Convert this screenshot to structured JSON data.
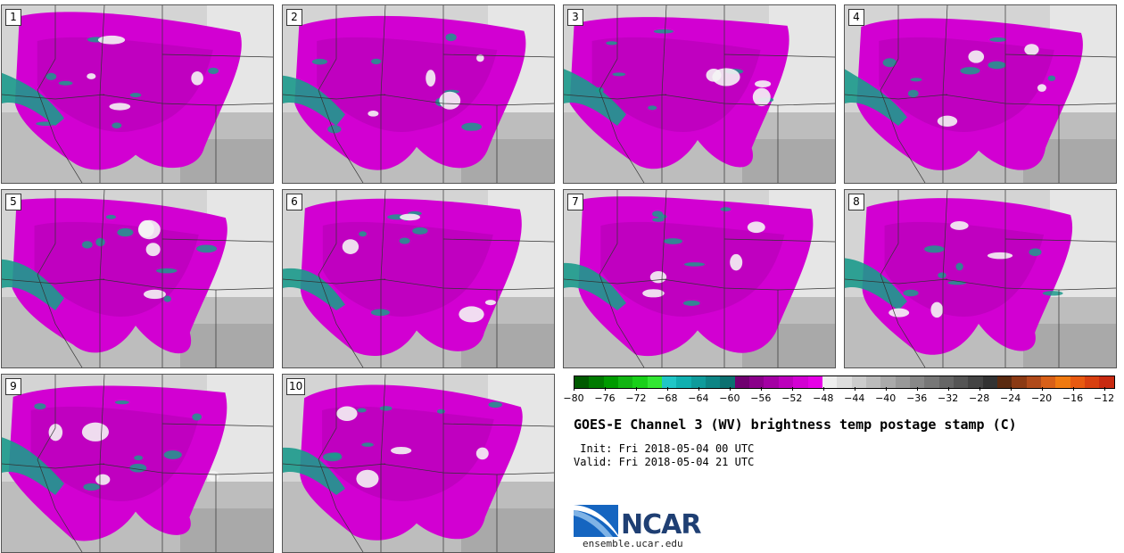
{
  "stamps": [
    {
      "label": "1"
    },
    {
      "label": "2"
    },
    {
      "label": "3"
    },
    {
      "label": "4"
    },
    {
      "label": "5"
    },
    {
      "label": "6"
    },
    {
      "label": "7"
    },
    {
      "label": "8"
    },
    {
      "label": "9"
    },
    {
      "label": "10"
    }
  ],
  "colorbar": {
    "colors": [
      "#005a00",
      "#007a00",
      "#009b00",
      "#12b512",
      "#19d019",
      "#33e633",
      "#20c6c6",
      "#10b0b0",
      "#0f9b9b",
      "#0d8585",
      "#0b7070",
      "#700070",
      "#8a008a",
      "#a300a3",
      "#bc00bc",
      "#d200d2",
      "#e600e6",
      "#eeeeee",
      "#dddddd",
      "#cccccc",
      "#bbbbbb",
      "#aaaaaa",
      "#999999",
      "#888888",
      "#777777",
      "#666666",
      "#555555",
      "#444444",
      "#333333",
      "#5a2a10",
      "#8b3a14",
      "#b04a1a",
      "#d86018",
      "#f07a10",
      "#e85a10",
      "#d84010",
      "#c82a10"
    ],
    "tick_labels": [
      "−80",
      "−76",
      "−72",
      "−68",
      "−64",
      "−60",
      "−56",
      "−52",
      "−48",
      "−44",
      "−40",
      "−36",
      "−32",
      "−28",
      "−24",
      "−20",
      "−16",
      "−12"
    ]
  },
  "title": "GOES-E Channel 3 (WV) brightness temp postage stamp (C)",
  "init": " Init: Fri 2018-05-04 00 UTC",
  "valid": "Valid: Fri 2018-05-04 21 UTC",
  "logo": {
    "name": "NCAR",
    "url": "ensemble.ucar.edu"
  }
}
